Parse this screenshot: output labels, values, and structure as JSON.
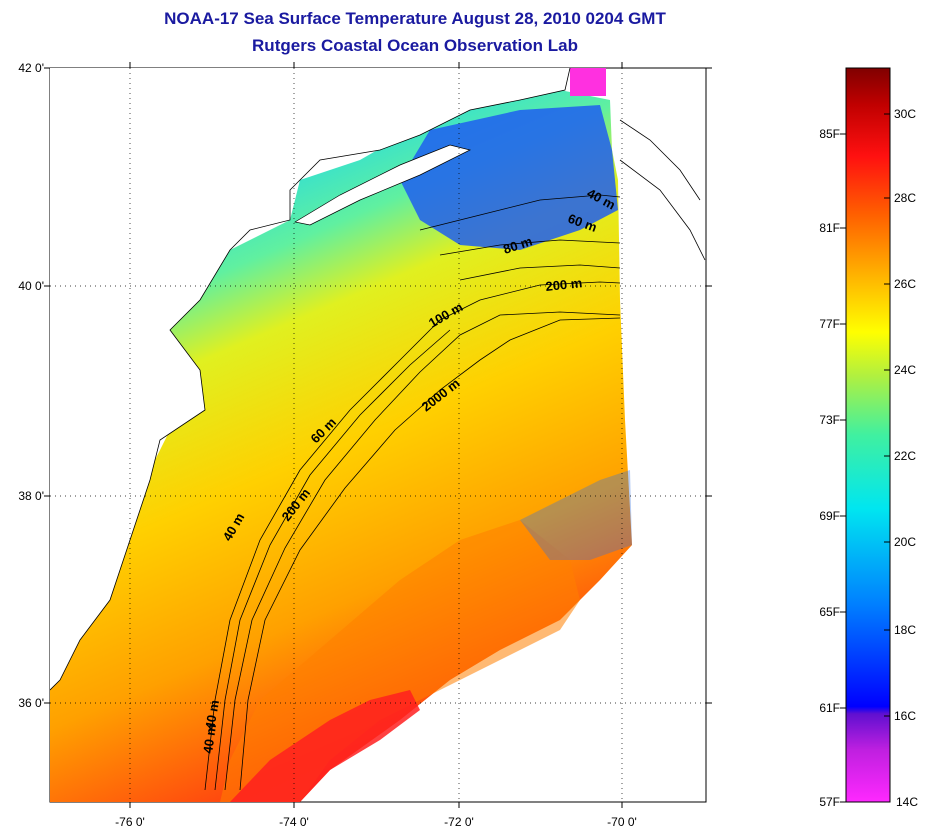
{
  "title": "NOAA-17 Sea Surface Temperature August 28, 2010 0204 GMT",
  "subtitle": "Rutgers Coastal Ocean Observation Lab",
  "map": {
    "lat_ticks": [
      {
        "value": 42,
        "label": "42 0'"
      },
      {
        "value": 40,
        "label": "40 0'"
      },
      {
        "value": 38,
        "label": "38 0'"
      },
      {
        "value": 36,
        "label": "36 0'"
      }
    ],
    "lon_ticks": [
      {
        "value": -76,
        "label": "-76 0'"
      },
      {
        "value": -74,
        "label": "-74 0'"
      },
      {
        "value": -72,
        "label": "-72 0'"
      },
      {
        "value": -70,
        "label": "-70 0'"
      }
    ],
    "isobath_labels": [
      "40 m",
      "60 m",
      "80 m",
      "200 m",
      "100 m",
      "2000 m",
      "60 m",
      "40 m",
      "200 m",
      "40 m",
      "40 m"
    ]
  },
  "colorbar": {
    "fahrenheit": [
      "85F",
      "81F",
      "77F",
      "73F",
      "69F",
      "65F",
      "61F",
      "57F"
    ],
    "celsius": [
      "30C",
      "28C",
      "26C",
      "24C",
      "22C",
      "20C",
      "18C",
      "16C",
      "14C"
    ],
    "min_c": 14,
    "max_c": 31.5
  }
}
